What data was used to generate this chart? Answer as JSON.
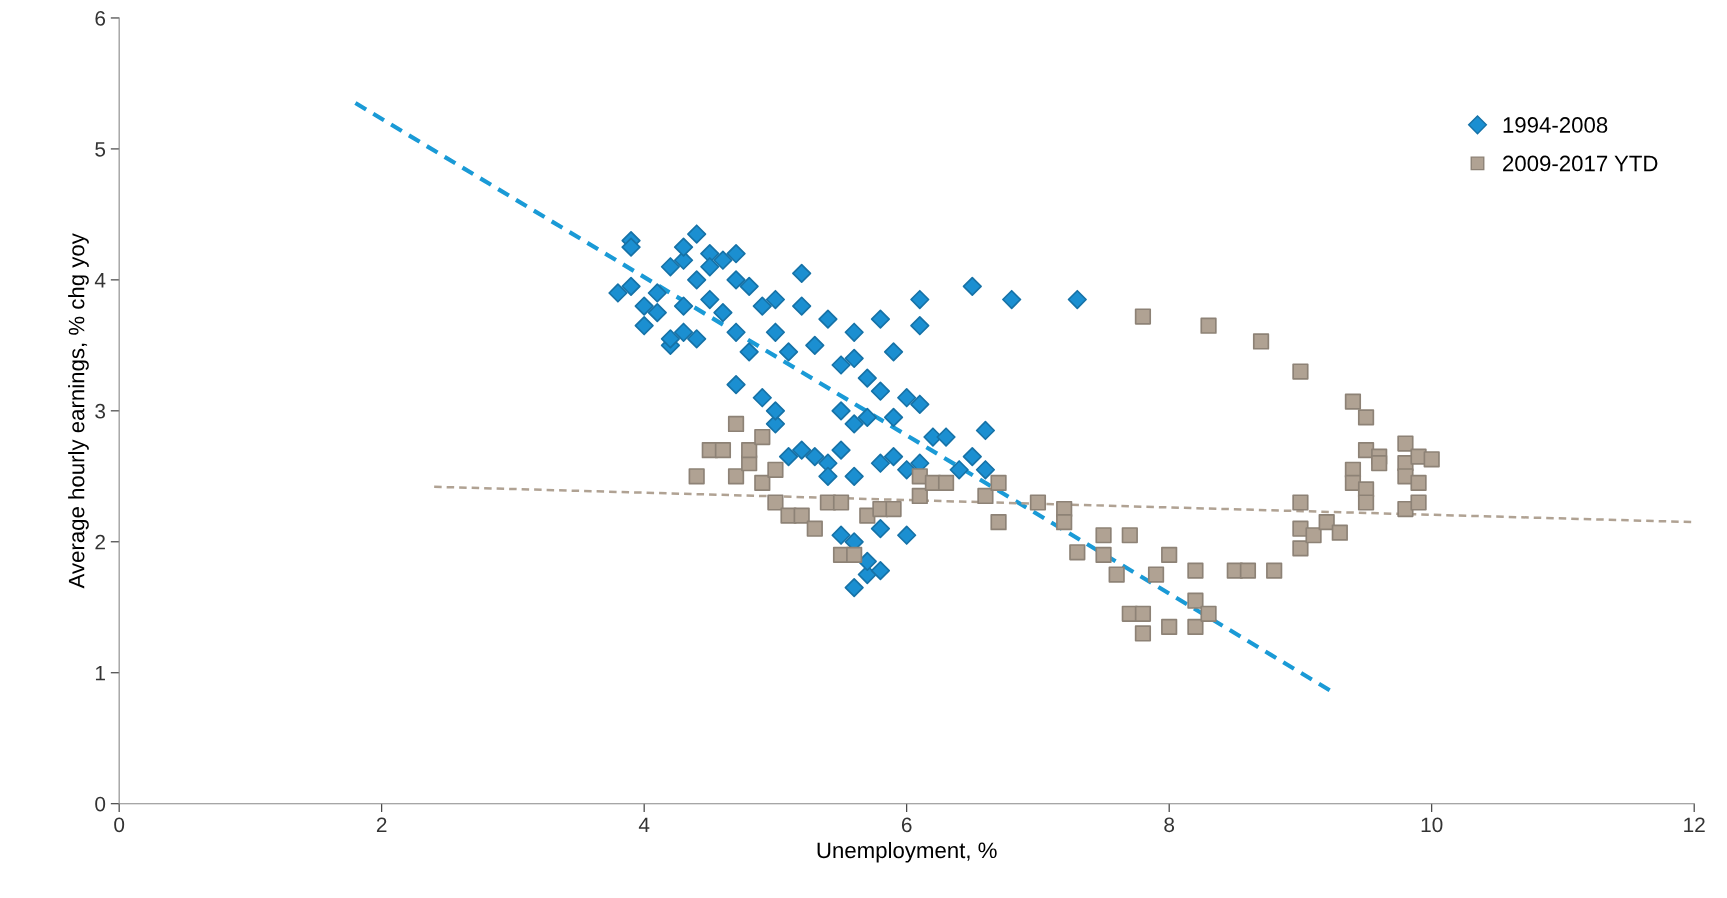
{
  "chart_data": {
    "type": "scatter",
    "xlabel": "Unemployment, %",
    "ylabel": "Average hourly earnings, % chg yoy",
    "xlim": [
      0,
      12
    ],
    "xticks": [
      0,
      2,
      4,
      6,
      8,
      10,
      12
    ],
    "ylim": [
      0,
      6
    ],
    "yticks": [
      0,
      1,
      2,
      3,
      4,
      5,
      6
    ],
    "grid": false,
    "legend": "top right",
    "series": [
      {
        "name": "1994-2008",
        "marker": "diamond",
        "color": "#1b8fd1",
        "x": [
          3.8,
          3.9,
          3.9,
          3.9,
          4.0,
          4.0,
          4.1,
          4.1,
          4.2,
          4.2,
          4.2,
          4.3,
          4.3,
          4.3,
          4.3,
          4.4,
          4.4,
          4.4,
          4.5,
          4.5,
          4.5,
          4.6,
          4.6,
          4.7,
          4.7,
          4.7,
          4.7,
          4.8,
          4.8,
          4.9,
          4.9,
          5.0,
          5.0,
          5.0,
          5.0,
          5.1,
          5.1,
          5.2,
          5.2,
          5.2,
          5.3,
          5.3,
          5.4,
          5.4,
          5.4,
          5.5,
          5.5,
          5.5,
          5.5,
          5.6,
          5.6,
          5.6,
          5.6,
          5.6,
          5.6,
          5.7,
          5.7,
          5.7,
          5.7,
          5.8,
          5.8,
          5.8,
          5.8,
          5.8,
          5.9,
          5.9,
          5.9,
          6.0,
          6.0,
          6.0,
          6.1,
          6.1,
          6.1,
          6.1,
          6.2,
          6.3,
          6.4,
          6.5,
          6.5,
          6.6,
          6.6,
          6.8,
          7.3
        ],
        "values": [
          3.9,
          4.3,
          4.25,
          3.95,
          3.8,
          3.65,
          3.75,
          3.9,
          3.5,
          3.55,
          4.1,
          4.15,
          3.8,
          4.25,
          3.6,
          4.35,
          4.0,
          3.55,
          4.2,
          3.85,
          4.1,
          4.15,
          3.75,
          4.0,
          4.2,
          3.6,
          3.2,
          3.45,
          3.95,
          3.8,
          3.1,
          3.6,
          3.85,
          2.9,
          3.0,
          3.45,
          2.65,
          4.05,
          3.8,
          2.7,
          3.5,
          2.65,
          3.7,
          2.6,
          2.5,
          3.35,
          3.0,
          2.7,
          2.05,
          3.6,
          3.4,
          2.9,
          2.5,
          1.65,
          2.0,
          3.25,
          2.95,
          1.75,
          1.85,
          3.7,
          3.15,
          2.6,
          2.1,
          1.78,
          3.45,
          2.95,
          2.65,
          3.1,
          2.55,
          2.05,
          3.85,
          3.65,
          3.05,
          2.6,
          2.8,
          2.8,
          2.55,
          3.95,
          2.65,
          2.85,
          2.55,
          3.85,
          3.85
        ]
      },
      {
        "name": "2009-2017 YTD",
        "marker": "square",
        "color": "#b0a293",
        "x": [
          4.4,
          4.5,
          4.6,
          4.7,
          4.7,
          4.8,
          4.8,
          4.9,
          4.9,
          5.0,
          5.0,
          5.1,
          5.2,
          5.3,
          5.4,
          5.5,
          5.5,
          5.6,
          5.7,
          5.8,
          5.9,
          6.1,
          6.1,
          6.2,
          6.3,
          6.6,
          6.7,
          6.7,
          7.0,
          7.2,
          7.2,
          7.3,
          7.5,
          7.5,
          7.6,
          7.7,
          7.7,
          7.8,
          7.8,
          7.8,
          7.9,
          8.0,
          8.0,
          8.2,
          8.2,
          8.2,
          8.3,
          8.3,
          8.5,
          8.6,
          8.7,
          8.8,
          9.0,
          9.0,
          9.0,
          9.0,
          9.1,
          9.2,
          9.3,
          9.4,
          9.4,
          9.4,
          9.5,
          9.5,
          9.5,
          9.5,
          9.6,
          9.6,
          9.8,
          9.8,
          9.8,
          9.8,
          9.9,
          9.9,
          9.9,
          10.0
        ],
        "values": [
          2.5,
          2.7,
          2.7,
          2.9,
          2.5,
          2.6,
          2.7,
          2.8,
          2.45,
          2.55,
          2.3,
          2.2,
          2.2,
          2.1,
          2.3,
          1.9,
          2.3,
          1.9,
          2.2,
          2.25,
          2.25,
          2.5,
          2.35,
          2.45,
          2.45,
          2.35,
          2.45,
          2.15,
          2.3,
          2.25,
          2.15,
          1.92,
          2.05,
          1.9,
          1.75,
          2.05,
          1.45,
          1.45,
          1.3,
          3.72,
          1.75,
          1.9,
          1.35,
          1.78,
          1.55,
          1.35,
          1.45,
          3.65,
          1.78,
          1.78,
          3.53,
          1.78,
          3.3,
          2.3,
          2.1,
          1.95,
          2.05,
          2.15,
          2.07,
          3.07,
          2.55,
          2.45,
          2.95,
          2.7,
          2.4,
          2.3,
          2.65,
          2.6,
          2.75,
          2.6,
          2.5,
          2.25,
          2.65,
          2.45,
          2.3,
          2.63
        ]
      },
      {
        "type": "line",
        "line_style": "dashed",
        "marker": "none",
        "color": "#1a9ad6",
        "x": [
          1.8,
          9.25
        ],
        "values": [
          5.35,
          0.85
        ]
      },
      {
        "type": "line",
        "line_style": "dashed",
        "marker": "none",
        "color": "#b0a293",
        "x": [
          2.4,
          12
        ],
        "values": [
          2.42,
          2.15
        ]
      }
    ]
  }
}
